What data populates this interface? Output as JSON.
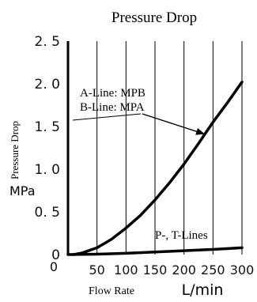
{
  "chart_data": {
    "type": "line",
    "title": "Pressure Drop",
    "ylabel": "Pressure Drop",
    "ylabel_unit": "MPa",
    "xlabel": "Flow Rate",
    "xlabel_unit": "L/min",
    "xlim": [
      0,
      300
    ],
    "ylim": [
      0,
      2.5
    ],
    "x_ticks": [
      50,
      100,
      150,
      200,
      250,
      300
    ],
    "x_tick_labels": [
      "50",
      "100",
      "150",
      "200",
      "250",
      "300"
    ],
    "x_origin_label": "0",
    "y_ticks": [
      0.5,
      1.0,
      1.5,
      2.0,
      2.5
    ],
    "y_tick_labels": [
      "0. 5",
      "1. 0",
      "1. 5",
      "2. 0",
      "2. 5"
    ],
    "y_origin_label": "0",
    "grid": {
      "x": true,
      "y": false
    },
    "series": [
      {
        "name": "A-Line: MPB",
        "name2": "B-Line: MPA",
        "x": [
          10,
          25,
          50,
          75,
          100,
          125,
          150,
          175,
          200,
          225,
          250,
          275,
          300
        ],
        "y": [
          0.0,
          0.02,
          0.08,
          0.18,
          0.31,
          0.46,
          0.64,
          0.84,
          1.06,
          1.3,
          1.55,
          1.78,
          2.02
        ]
      },
      {
        "name": "P-, T-Lines",
        "x": [
          0,
          50,
          100,
          150,
          200,
          250,
          300
        ],
        "y": [
          0.0,
          0.005,
          0.015,
          0.03,
          0.045,
          0.06,
          0.08
        ]
      }
    ],
    "annotations": [
      {
        "series": 0,
        "at_x": 236
      },
      {
        "series": 1,
        "at_x": 270
      }
    ]
  }
}
